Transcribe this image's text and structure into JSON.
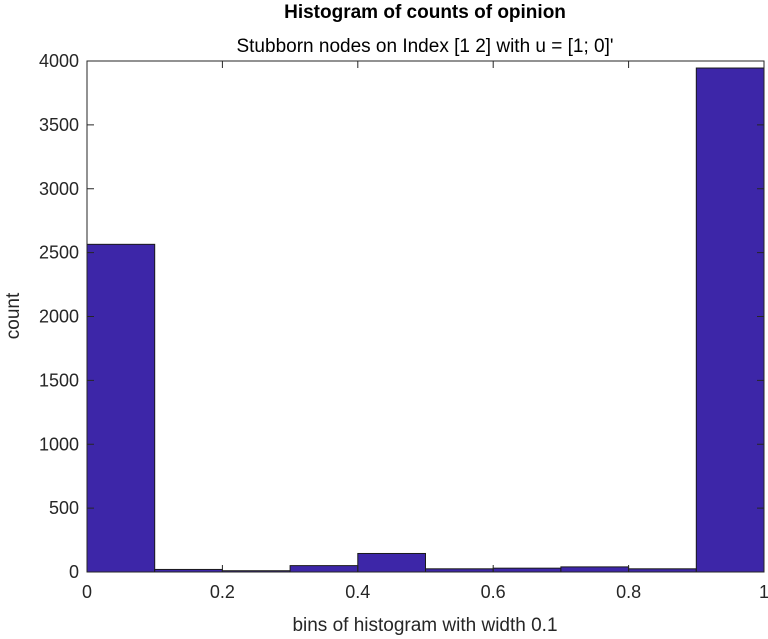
{
  "chart_data": {
    "type": "bar",
    "title": "Histogram of counts of opinion",
    "subtitle": "Stubborn nodes on Index [1 2] with u = [1; 0]'",
    "xlabel": "bins of histogram with width 0.1",
    "ylabel": "count",
    "bin_edges": [
      0,
      0.1,
      0.2,
      0.3,
      0.4,
      0.5,
      0.6,
      0.7,
      0.8,
      0.9,
      1.0
    ],
    "values": [
      2565,
      20,
      10,
      50,
      145,
      25,
      30,
      40,
      25,
      3945
    ],
    "xlim": [
      0,
      1
    ],
    "ylim": [
      0,
      4000
    ],
    "x_ticks": [
      "0",
      "0.2",
      "0.4",
      "0.6",
      "0.8",
      "1"
    ],
    "x_tick_values": [
      0,
      0.2,
      0.4,
      0.6,
      0.8,
      1
    ],
    "y_ticks": [
      "0",
      "500",
      "1000",
      "1500",
      "2000",
      "2500",
      "3000",
      "3500",
      "4000"
    ],
    "y_tick_values": [
      0,
      500,
      1000,
      1500,
      2000,
      2500,
      3000,
      3500,
      4000
    ],
    "bar_color": "#3d26a8",
    "grid": false,
    "legend": "none"
  }
}
